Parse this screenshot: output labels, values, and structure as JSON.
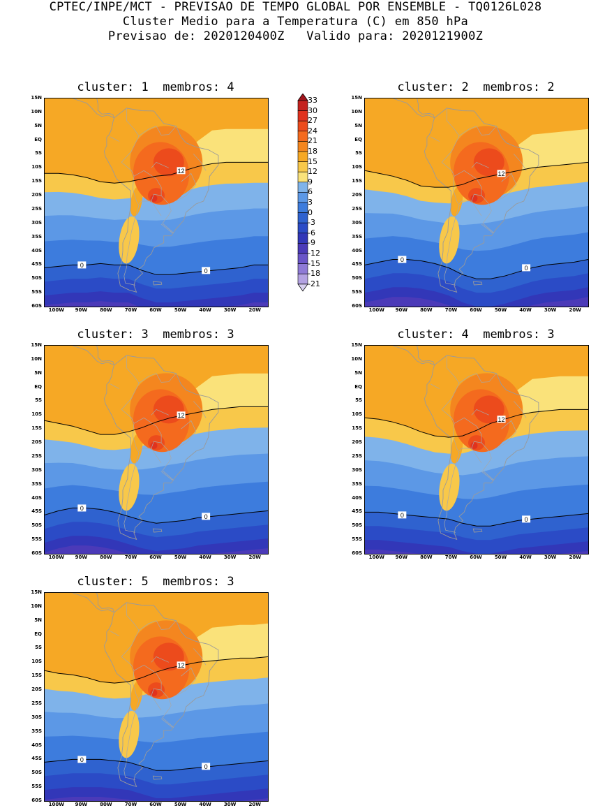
{
  "header": {
    "line1": "CPTEC/INPE/MCT - PREVISAO DE TEMPO GLOBAL POR ENSEMBLE - TQ0126L028",
    "line2": "Cluster Medio para a Temperatura (C) em 850 hPa",
    "line3": "Previsao de: 2020120400Z   Valido para: 2020121900Z"
  },
  "panels": [
    {
      "title": "cluster: 1  membros: 4",
      "c12": [
        12,
        12,
        12.5,
        13.5,
        15,
        15.5,
        15,
        14,
        13,
        12.5,
        11,
        9.5,
        8.5,
        8,
        8,
        8,
        8
      ],
      "c0": [
        46,
        45.5,
        45,
        45,
        44.5,
        45,
        45,
        47,
        48.5,
        48.5,
        48,
        47.5,
        47,
        46.5,
        46,
        45,
        45
      ]
    },
    {
      "title": "cluster: 2  membros: 2",
      "c12": [
        11,
        12,
        13,
        14.5,
        16.5,
        17,
        17,
        16,
        14,
        13,
        12,
        11,
        10,
        9.5,
        9,
        8.5,
        8
      ],
      "c0": [
        45,
        44,
        43,
        43,
        43.5,
        44.5,
        46,
        48.5,
        50,
        50,
        49,
        47.5,
        46,
        45,
        44.5,
        44,
        43
      ]
    },
    {
      "title": "cluster: 3  membros: 3",
      "c12": [
        12,
        13,
        14,
        15.5,
        17,
        17,
        16,
        14.5,
        12.5,
        11,
        10,
        9,
        8,
        7.5,
        7,
        7,
        7
      ],
      "c0": [
        46,
        44.5,
        43.5,
        43.5,
        44,
        45,
        46.5,
        48,
        49,
        48.5,
        48,
        47,
        46.5,
        46,
        45.5,
        45,
        44.5
      ]
    },
    {
      "title": "cluster: 4  membros: 3",
      "c12": [
        11,
        11.5,
        12.5,
        14,
        16,
        17.5,
        18,
        17.5,
        15.5,
        13,
        11.5,
        10,
        9,
        8.5,
        8,
        8,
        8
      ],
      "c0": [
        45,
        45,
        45.5,
        46,
        46.5,
        47,
        47.5,
        49,
        50,
        50,
        49,
        48,
        47.5,
        47,
        46.5,
        46,
        45.5
      ]
    },
    {
      "title": "cluster: 5  membros: 3",
      "c12": [
        13,
        14,
        14.5,
        15.5,
        17,
        17.5,
        17,
        15.5,
        13.5,
        12,
        11,
        10,
        9.5,
        9,
        8.5,
        8.5,
        8
      ],
      "c0": [
        46,
        45.5,
        45,
        45,
        45,
        45.5,
        46,
        47.5,
        49,
        49,
        48.5,
        48,
        47.5,
        47,
        46.5,
        46,
        45.5
      ]
    }
  ],
  "lat_labels": [
    "15N",
    "10N",
    "5N",
    "EQ",
    "5S",
    "10S",
    "15S",
    "20S",
    "25S",
    "30S",
    "35S",
    "40S",
    "45S",
    "50S",
    "55S",
    "60S"
  ],
  "lon_labels": [
    "100W",
    "90W",
    "80W",
    "70W",
    "60W",
    "50W",
    "40W",
    "30W",
    "20W"
  ],
  "contour_label_12": "12",
  "contour_label_0": "0",
  "colorbar": {
    "labels": [
      "33",
      "30",
      "27",
      "24",
      "21",
      "18",
      "15",
      "12",
      "9",
      "6",
      "3",
      "0",
      "-3",
      "-6",
      "-9",
      "-12",
      "-15",
      "-18",
      "-21"
    ],
    "colors": [
      "#a0141c",
      "#c4221e",
      "#e0321e",
      "#ec4b1c",
      "#f46a1e",
      "#f4861f",
      "#f6a825",
      "#f8c84a",
      "#fae27a",
      "#7fb3ea",
      "#5c98e6",
      "#3d7cdd",
      "#2f62cf",
      "#2b4bc6",
      "#3237b8",
      "#4b3ab8",
      "#6a55c8",
      "#8e7ad6",
      "#b3a2e2",
      "#d8d0f0"
    ],
    "scale": [
      33,
      30,
      27,
      24,
      21,
      18,
      15,
      12,
      9,
      6,
      3,
      0,
      -3,
      -6,
      -9,
      -12,
      -15,
      -18,
      -21
    ]
  }
}
